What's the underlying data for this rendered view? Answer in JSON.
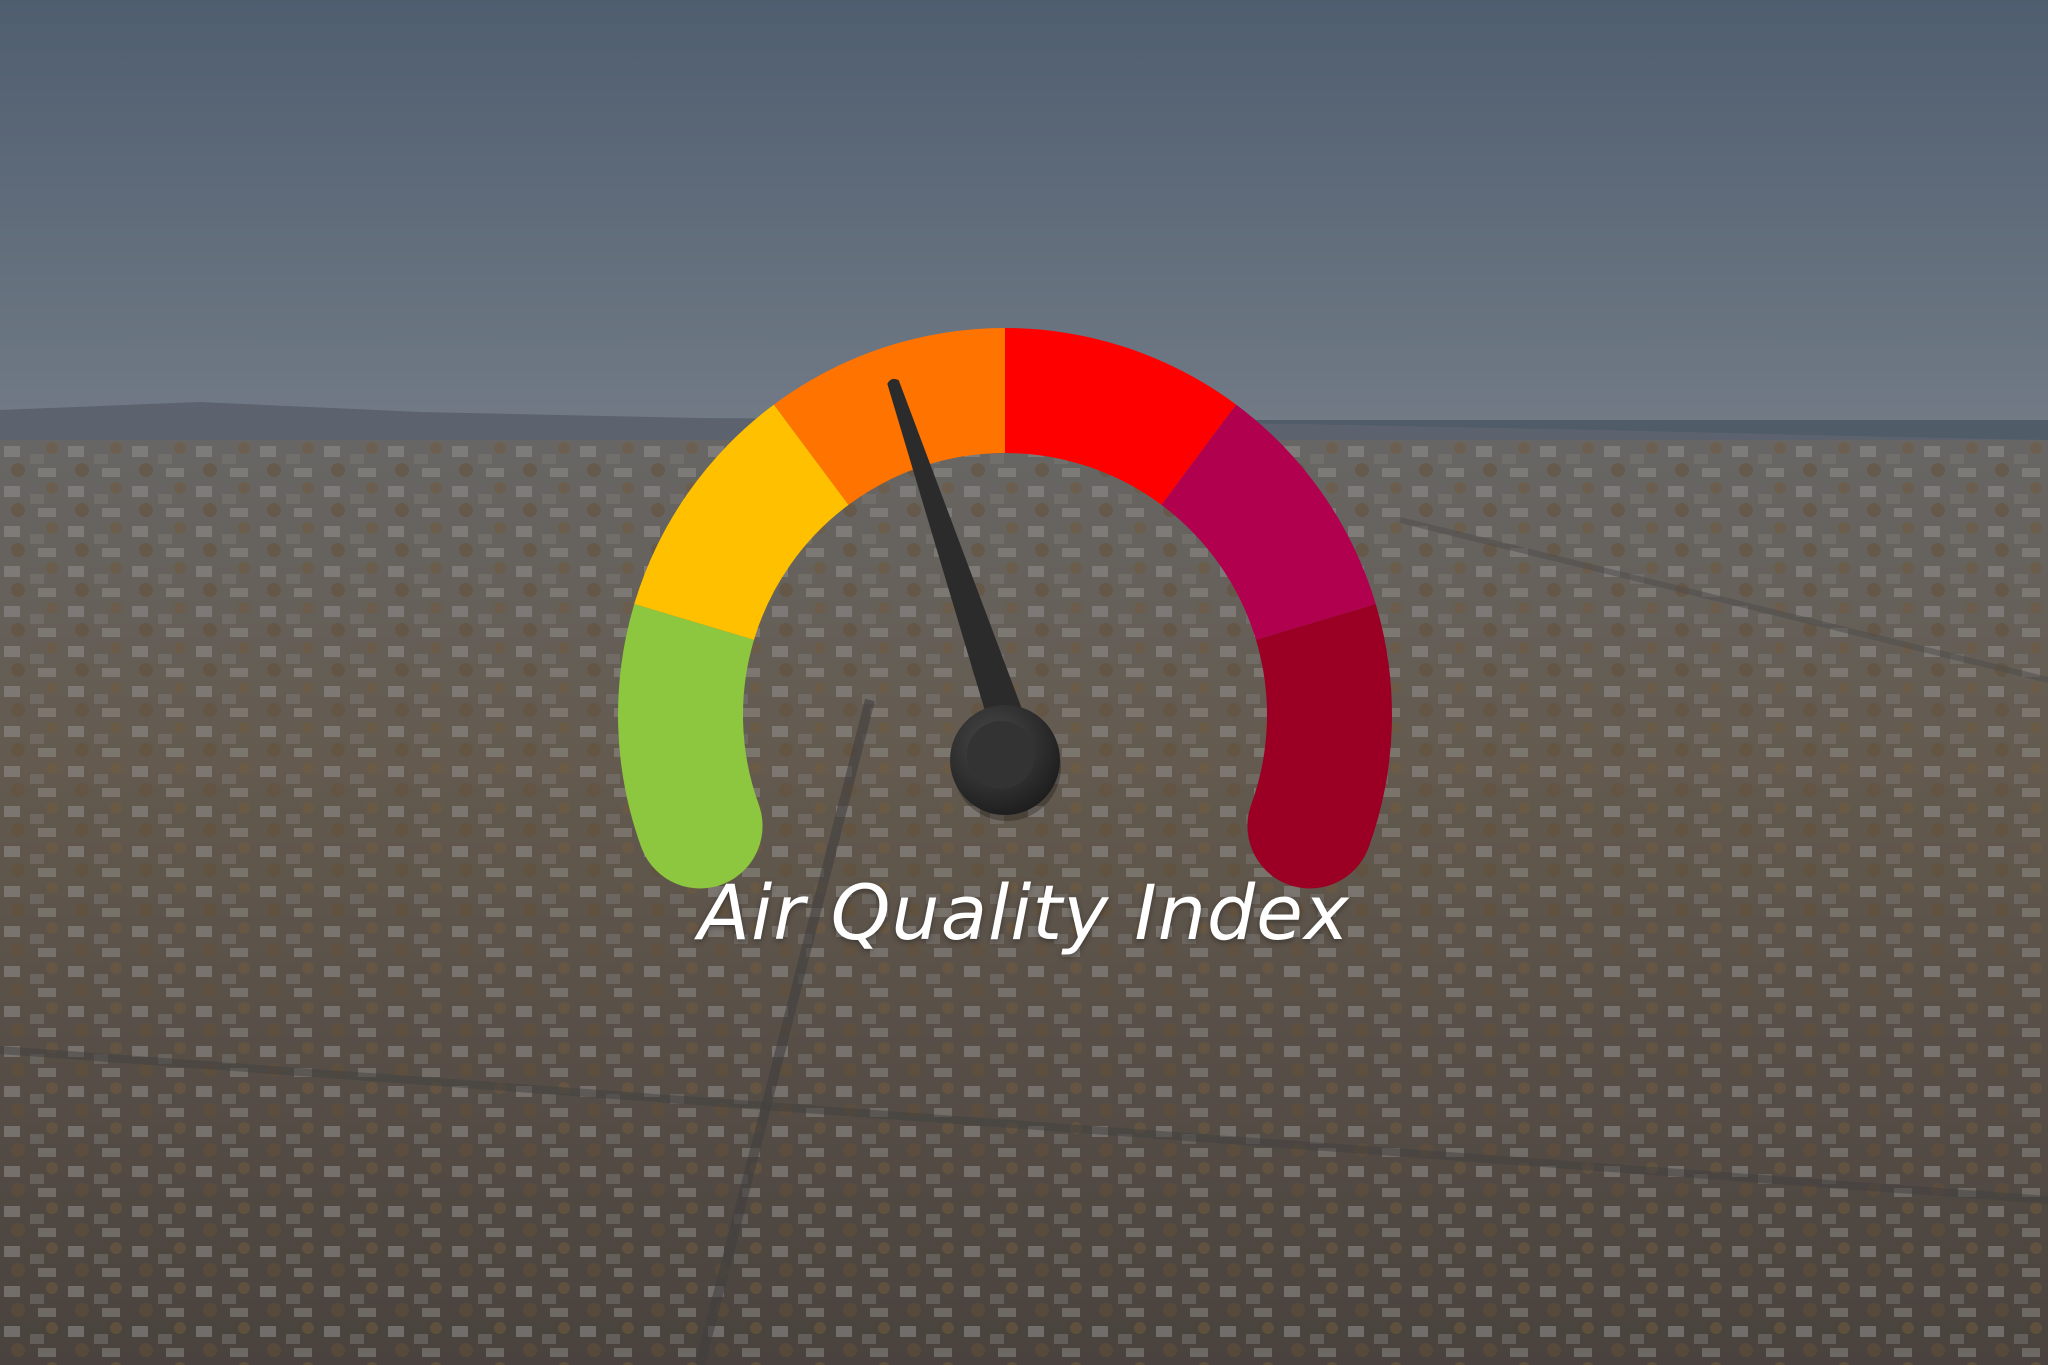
{
  "title": "Air Quality Index",
  "gauge": {
    "segment_colors": [
      "#8dc63f",
      "#ffc000",
      "#ff7300",
      "#ff0000",
      "#b0004e",
      "#9b0024"
    ],
    "needle_color": "#2b2b2b"
  }
}
